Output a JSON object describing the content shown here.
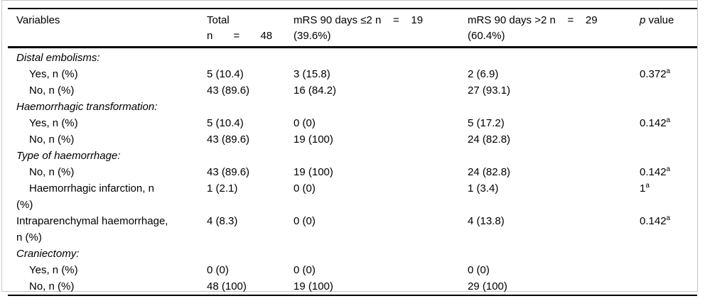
{
  "table": {
    "headers": {
      "variables": "Variables",
      "total": "Total\nn       =       48",
      "mrs_le2": "mRS 90 days ≤2 n    =    19\n(39.6%)",
      "mrs_gt2": "mRS 90 days >2 n    =    29\n(60.4%)",
      "p_italic": "p",
      "p_rest": " value"
    },
    "rows": [
      {
        "label": "Distal embolisms:",
        "italic": true,
        "indent": false,
        "total": "",
        "mrs_le2": "",
        "mrs_gt2": "",
        "p": "",
        "p_sup": ""
      },
      {
        "label": "Yes, n (%)",
        "italic": false,
        "indent": true,
        "total": "5 (10.4)",
        "mrs_le2": "3 (15.8)",
        "mrs_gt2": "2 (6.9)",
        "p": "0.372",
        "p_sup": "a"
      },
      {
        "label": "No, n (%)",
        "italic": false,
        "indent": true,
        "total": "43 (89.6)",
        "mrs_le2": "16 (84.2)",
        "mrs_gt2": "27 (93.1)",
        "p": "",
        "p_sup": ""
      },
      {
        "label": "Haemorrhagic transformation:",
        "italic": true,
        "indent": false,
        "total": "",
        "mrs_le2": "",
        "mrs_gt2": "",
        "p": "",
        "p_sup": ""
      },
      {
        "label": "Yes, n (%)",
        "italic": false,
        "indent": true,
        "total": "5 (10.4)",
        "mrs_le2": "0 (0)",
        "mrs_gt2": "5 (17.2)",
        "p": "0.142",
        "p_sup": "a"
      },
      {
        "label": "No, n (%)",
        "italic": false,
        "indent": true,
        "total": "43 (89.6)",
        "mrs_le2": "19 (100)",
        "mrs_gt2": "24 (82.8)",
        "p": "",
        "p_sup": ""
      },
      {
        "label": "Type of haemorrhage:",
        "italic": true,
        "indent": false,
        "total": "",
        "mrs_le2": "",
        "mrs_gt2": "",
        "p": "",
        "p_sup": ""
      },
      {
        "label": "No, n (%)",
        "italic": false,
        "indent": true,
        "total": "43 (89.6)",
        "mrs_le2": "19 (100)",
        "mrs_gt2": "24 (82.8)",
        "p": "0.142",
        "p_sup": "a"
      },
      {
        "label": "Haemorrhagic infarction, n\n(%)",
        "italic": false,
        "indent": true,
        "total": "1 (2.1)",
        "mrs_le2": "0 (0)",
        "mrs_gt2": "1 (3.4)",
        "p": "1",
        "p_sup": "a"
      },
      {
        "label": "Intraparenchymal haemorrhage,\nn (%)",
        "italic": false,
        "indent": false,
        "total": "4 (8.3)",
        "mrs_le2": "0 (0)",
        "mrs_gt2": "4 (13.8)",
        "p": "0.142",
        "p_sup": "a"
      },
      {
        "label": "Craniectomy:",
        "italic": true,
        "indent": false,
        "total": "",
        "mrs_le2": "",
        "mrs_gt2": "",
        "p": "",
        "p_sup": ""
      },
      {
        "label": "Yes, n (%)",
        "italic": false,
        "indent": true,
        "total": "0 (0)",
        "mrs_le2": "0 (0)",
        "mrs_gt2": "0 (0)",
        "p": "",
        "p_sup": ""
      },
      {
        "label": "No, n (%)",
        "italic": false,
        "indent": true,
        "total": "48 (100)",
        "mrs_le2": "19 (100)",
        "mrs_gt2": "29 (100)",
        "p": "",
        "p_sup": ""
      }
    ]
  },
  "colors": {
    "rule": "#000000",
    "frame_border": "#c6c6c6",
    "text": "#000000"
  }
}
